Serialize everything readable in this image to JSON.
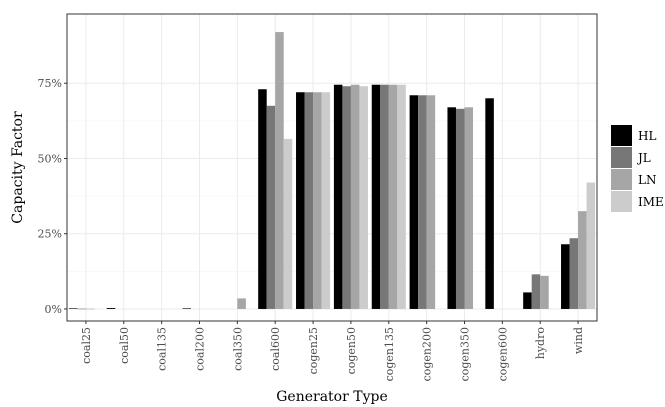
{
  "chart_data": {
    "type": "bar",
    "xlabel": "Generator Type",
    "ylabel": "Capacity Factor",
    "ylim": [
      -0.04,
      0.98
    ],
    "yticks": [
      0,
      0.25,
      0.5,
      0.75
    ],
    "ytick_labels": [
      "0%",
      "25%",
      "50%",
      "75%"
    ],
    "grid": true,
    "legend_position": "right",
    "categories": [
      "coal25",
      "coal50",
      "coal135",
      "coal200",
      "coal350",
      "coal600",
      "cogen25",
      "cogen50",
      "cogen135",
      "cogen200",
      "cogen350",
      "cogen600",
      "hydro",
      "wind"
    ],
    "series": [
      {
        "name": "HL",
        "color": "#000000",
        "values": [
          0.002,
          0.003,
          null,
          0.002,
          null,
          0.73,
          0.72,
          0.745,
          0.745,
          0.71,
          0.67,
          0.7,
          0.055,
          0.215
        ]
      },
      {
        "name": "JL",
        "color": "#777777",
        "values": [
          0.001,
          null,
          null,
          null,
          null,
          0.675,
          0.72,
          0.74,
          0.745,
          0.71,
          0.665,
          null,
          0.115,
          0.235
        ]
      },
      {
        "name": "LN",
        "color": "#a6a6a6",
        "values": [
          0.001,
          null,
          null,
          null,
          0.035,
          0.92,
          0.72,
          0.745,
          0.745,
          0.71,
          0.67,
          null,
          0.11,
          0.325
        ]
      },
      {
        "name": "IME",
        "color": "#cccccc",
        "values": [
          null,
          null,
          null,
          null,
          null,
          0.565,
          0.72,
          0.74,
          0.745,
          null,
          null,
          null,
          null,
          0.42
        ]
      }
    ]
  }
}
